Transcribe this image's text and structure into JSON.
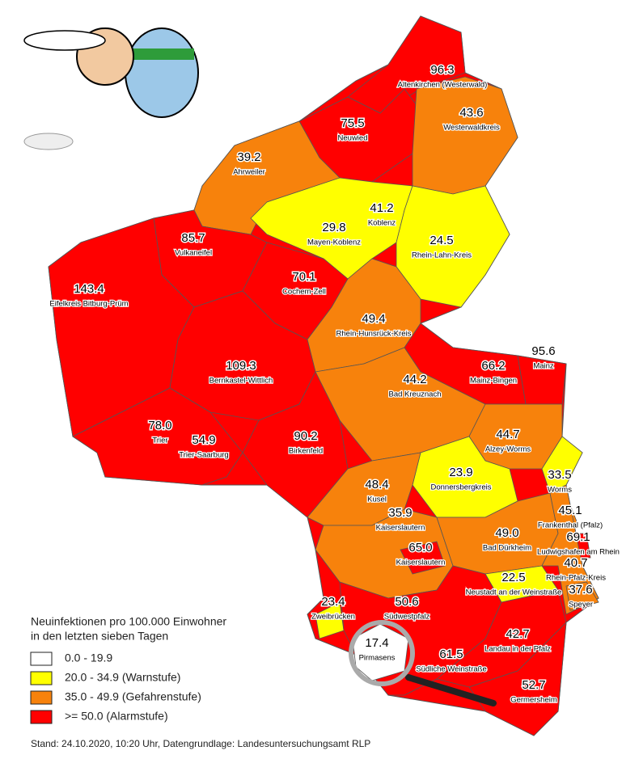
{
  "legend": {
    "title": [
      "Neuinfektionen pro 100.000 Einwohner",
      "in den letzten sieben Tagen"
    ],
    "items": [
      {
        "label": "0.0 - 19.9",
        "color": "#ffffff"
      },
      {
        "label": "20.0 - 34.9 (Warnstufe)",
        "color": "#ffff00"
      },
      {
        "label": "35.0 - 49.9 (Gefahrenstufe)",
        "color": "#f7820c"
      },
      {
        "label": ">= 50.0 (Alarmstufe)",
        "color": "#ff0000"
      }
    ]
  },
  "districts": [
    {
      "value": "96.3",
      "name": "Altenkirchen (Westerwald)",
      "color": "#ff0000"
    },
    {
      "value": "75.5",
      "name": "Neuwied",
      "color": "#ff0000"
    },
    {
      "value": "43.6",
      "name": "Westerwaldkreis",
      "color": "#f7820c"
    },
    {
      "value": "39.2",
      "name": "Ahrweiler",
      "color": "#f7820c"
    },
    {
      "value": "41.2",
      "name": "Koblenz",
      "color": "#f7820c"
    },
    {
      "value": "29.8",
      "name": "Mayen-Koblenz",
      "color": "#ffff00"
    },
    {
      "value": "24.5",
      "name": "Rhein-Lahn-Kreis",
      "color": "#ffff00"
    },
    {
      "value": "85.7",
      "name": "Vulkaneifel",
      "color": "#ff0000"
    },
    {
      "value": "143.4",
      "name": "Eifelkreis Bitburg-Prüm",
      "color": "#ff0000"
    },
    {
      "value": "70.1",
      "name": "Cochem-Zell",
      "color": "#ff0000"
    },
    {
      "value": "49.4",
      "name": "Rhein-Hunsrück-Kreis",
      "color": "#f7820c"
    },
    {
      "value": "109.3",
      "name": "Bernkastel-Wittlich",
      "color": "#ff0000"
    },
    {
      "value": "66.2",
      "name": "Mainz-Bingen",
      "color": "#ff0000"
    },
    {
      "value": "95.6",
      "name": "Mainz",
      "color": "#ff0000"
    },
    {
      "value": "44.2",
      "name": "Bad Kreuznach",
      "color": "#f7820c"
    },
    {
      "value": "78.0",
      "name": "Trier",
      "color": "#ff0000"
    },
    {
      "value": "54.9",
      "name": "Trier-Saarburg",
      "color": "#ff0000"
    },
    {
      "value": "90.2",
      "name": "Birkenfeld",
      "color": "#ff0000"
    },
    {
      "value": "44.7",
      "name": "Alzey-Worms",
      "color": "#f7820c"
    },
    {
      "value": "23.9",
      "name": "Donnersbergkreis",
      "color": "#ffff00"
    },
    {
      "value": "33.5",
      "name": "Worms",
      "color": "#ffff00"
    },
    {
      "value": "48.4",
      "name": "Kusel",
      "color": "#f7820c"
    },
    {
      "value": "35.9",
      "name": "Kaiserslautern",
      "color": "#f7820c"
    },
    {
      "value": "45.1",
      "name": "Frankenthal (Pfalz)",
      "color": "#f7820c"
    },
    {
      "value": "49.0",
      "name": "Bad Dürkheim",
      "color": "#f7820c"
    },
    {
      "value": "65.0",
      "name": "Kaiserslautern",
      "color": "#ff0000"
    },
    {
      "value": "69.1",
      "name": "Ludwigshafen am Rhein",
      "color": "#ff0000"
    },
    {
      "value": "40.7",
      "name": "Rhein-Pfalz-Kreis",
      "color": "#f7820c"
    },
    {
      "value": "22.5",
      "name": "Neustadt an der Weinstraße",
      "color": "#ffff00"
    },
    {
      "value": "37.6",
      "name": "Speyer",
      "color": "#f7820c"
    },
    {
      "value": "23.4",
      "name": "Zweibrücken",
      "color": "#ffff00"
    },
    {
      "value": "50.6",
      "name": "Südwestpfalz",
      "color": "#ff0000"
    },
    {
      "value": "42.7",
      "name": "Landau in der Pfalz",
      "color": "#f7820c"
    },
    {
      "value": "17.4",
      "name": "Pirmasens",
      "color": "#ffffff"
    },
    {
      "value": "61.5",
      "name": "Südliche Weinstraße",
      "color": "#ff0000"
    },
    {
      "value": "52.7",
      "name": "Germersheim",
      "color": "#ff0000"
    }
  ],
  "footer": "Stand: 24.10.2020, 10:20 Uhr, Datengrundlage: Landesuntersuchungsamt RLP"
}
